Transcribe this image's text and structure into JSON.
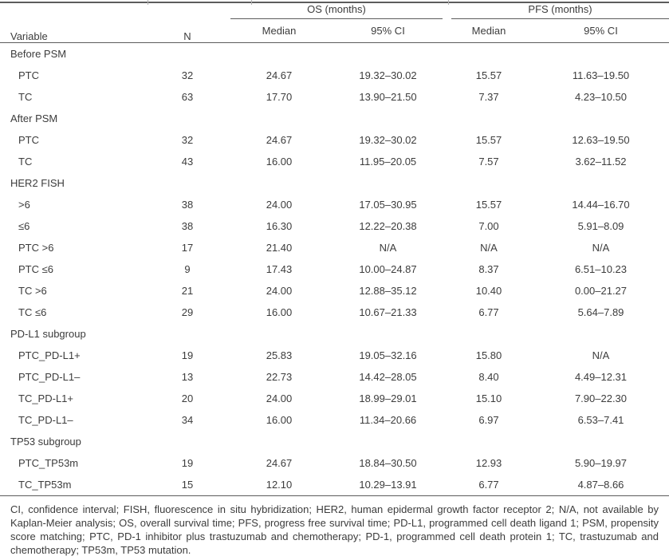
{
  "colors": {
    "text": "#3c3c3c",
    "rule": "#5c5c5c",
    "tick": "#b3b3b3"
  },
  "table": {
    "header": {
      "variable": "Variable",
      "n": "N",
      "os_group": "OS (months)",
      "pfs_group": "PFS (months)",
      "median": "Median",
      "ci": "95% CI"
    },
    "rows": [
      {
        "type": "group",
        "label": "Before PSM"
      },
      {
        "type": "data",
        "label": "PTC",
        "n": "32",
        "os_median": "24.67",
        "os_ci": "19.32–30.02",
        "pfs_median": "15.57",
        "pfs_ci": "11.63–19.50"
      },
      {
        "type": "data",
        "label": "TC",
        "n": "63",
        "os_median": "17.70",
        "os_ci": "13.90–21.50",
        "pfs_median": "7.37",
        "pfs_ci": "4.23–10.50"
      },
      {
        "type": "group",
        "label": "After PSM"
      },
      {
        "type": "data",
        "label": "PTC",
        "n": "32",
        "os_median": "24.67",
        "os_ci": "19.32–30.02",
        "pfs_median": "15.57",
        "pfs_ci": "12.63–19.50"
      },
      {
        "type": "data",
        "label": "TC",
        "n": "43",
        "os_median": "16.00",
        "os_ci": "11.95–20.05",
        "pfs_median": "7.57",
        "pfs_ci": "3.62–11.52"
      },
      {
        "type": "group",
        "label": "HER2 FISH"
      },
      {
        "type": "data",
        "label": ">6",
        "n": "38",
        "os_median": "24.00",
        "os_ci": "17.05–30.95",
        "pfs_median": "15.57",
        "pfs_ci": "14.44–16.70"
      },
      {
        "type": "data",
        "label": "≤6",
        "n": "38",
        "os_median": "16.30",
        "os_ci": "12.22–20.38",
        "pfs_median": "7.00",
        "pfs_ci": "5.91–8.09"
      },
      {
        "type": "data",
        "label": "PTC >6",
        "n": "17",
        "os_median": "21.40",
        "os_ci": "N/A",
        "pfs_median": "N/A",
        "pfs_ci": "N/A"
      },
      {
        "type": "data",
        "label": "PTC ≤6",
        "n": "9",
        "os_median": "17.43",
        "os_ci": "10.00–24.87",
        "pfs_median": "8.37",
        "pfs_ci": "6.51–10.23"
      },
      {
        "type": "data",
        "label": "TC >6",
        "n": "21",
        "os_median": "24.00",
        "os_ci": "12.88–35.12",
        "pfs_median": "10.40",
        "pfs_ci": "0.00–21.27"
      },
      {
        "type": "data",
        "label": "TC ≤6",
        "n": "29",
        "os_median": "16.00",
        "os_ci": "10.67–21.33",
        "pfs_median": "6.77",
        "pfs_ci": "5.64–7.89"
      },
      {
        "type": "group",
        "label": "PD-L1 subgroup"
      },
      {
        "type": "data",
        "label": "PTC_PD-L1+",
        "n": "19",
        "os_median": "25.83",
        "os_ci": "19.05–32.16",
        "pfs_median": "15.80",
        "pfs_ci": "N/A"
      },
      {
        "type": "data",
        "label": "PTC_PD-L1–",
        "n": "13",
        "os_median": "22.73",
        "os_ci": "14.42–28.05",
        "pfs_median": "8.40",
        "pfs_ci": "4.49–12.31"
      },
      {
        "type": "data",
        "label": "TC_PD-L1+",
        "n": "20",
        "os_median": "24.00",
        "os_ci": "18.99–29.01",
        "pfs_median": "15.10",
        "pfs_ci": "7.90–22.30"
      },
      {
        "type": "data",
        "label": "TC_PD-L1–",
        "n": "34",
        "os_median": "16.00",
        "os_ci": "11.34–20.66",
        "pfs_median": "6.97",
        "pfs_ci": "6.53–7.41"
      },
      {
        "type": "group",
        "label": "TP53 subgroup"
      },
      {
        "type": "data",
        "label": "PTC_TP53m",
        "n": "19",
        "os_median": "24.67",
        "os_ci": "18.84–30.50",
        "pfs_median": "12.93",
        "pfs_ci": "5.90–19.97"
      },
      {
        "type": "data",
        "label": "TC_TP53m",
        "n": "15",
        "os_median": "12.10",
        "os_ci": "10.29–13.91",
        "pfs_median": "6.77",
        "pfs_ci": "4.87–8.66"
      }
    ],
    "footnote": "CI, confidence interval; FISH, fluorescence in situ hybridization; HER2, human epidermal growth factor receptor 2; N/A, not available by Kaplan-Meier analysis; OS, overall survival time; PFS, progress free survival time; PD-L1, programmed cell death ligand 1; PSM, propensity score matching; PTC, PD-1 inhibitor plus trastuzumab and chemotherapy; PD-1, programmed cell death protein 1; TC, trastuzumab and chemotherapy; TP53m, TP53 mutation."
  }
}
